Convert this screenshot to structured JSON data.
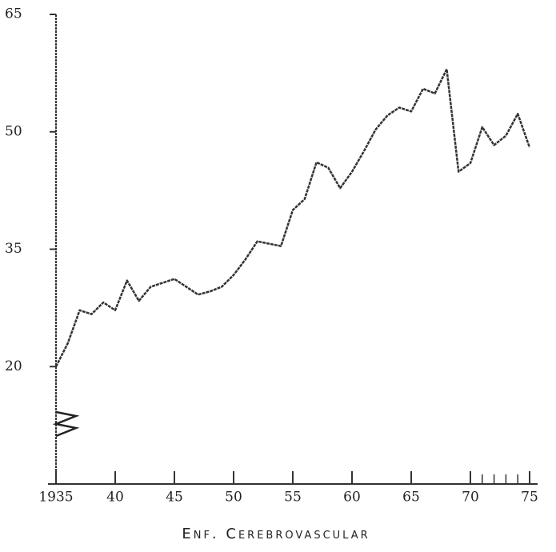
{
  "chart_data": {
    "type": "line",
    "title": "Enf. Cerebrovascular",
    "x": [
      1935,
      1936,
      1937,
      1938,
      1939,
      1940,
      1941,
      1942,
      1943,
      1944,
      1945,
      1946,
      1947,
      1948,
      1949,
      1950,
      1951,
      1952,
      1953,
      1954,
      1955,
      1956,
      1957,
      1958,
      1959,
      1960,
      1961,
      1962,
      1963,
      1964,
      1965,
      1966,
      1967,
      1968,
      1969,
      1970,
      1971,
      1972,
      1973,
      1974,
      1975
    ],
    "series": [
      {
        "color": "#333333",
        "values": [
          20,
          23,
          27.2,
          26.7,
          28.2,
          27.2,
          31,
          28.4,
          30.2,
          30.7,
          31.2,
          30.2,
          29.2,
          29.6,
          30.2,
          31.7,
          33.7,
          36,
          35.7,
          35.4,
          40,
          41.4,
          46.1,
          45.4,
          42.8,
          44.9,
          47.5,
          50.3,
          52.1,
          53.1,
          52.6,
          55.5,
          54.9,
          58,
          44.9,
          46,
          50.6,
          48.3,
          49.5,
          52.3,
          48
        ]
      }
    ],
    "xlim": [
      1935,
      1975
    ],
    "xticks": [
      1935,
      {
        "value": 1940,
        "label": "40"
      },
      {
        "value": 1945,
        "label": "45"
      },
      {
        "value": 1950,
        "label": "50"
      },
      {
        "value": 1955,
        "label": "55"
      },
      {
        "value": 1960,
        "label": "60"
      },
      {
        "value": 1965,
        "label": "65"
      },
      {
        "value": 1970,
        "label": "70"
      },
      {
        "value": 1975,
        "label": "75"
      }
    ],
    "minor_xticks": [
      1971,
      1972,
      1973,
      1974
    ],
    "ylim": [
      5,
      65
    ],
    "yticks": [
      20,
      35,
      50,
      65
    ],
    "grid": false
  }
}
